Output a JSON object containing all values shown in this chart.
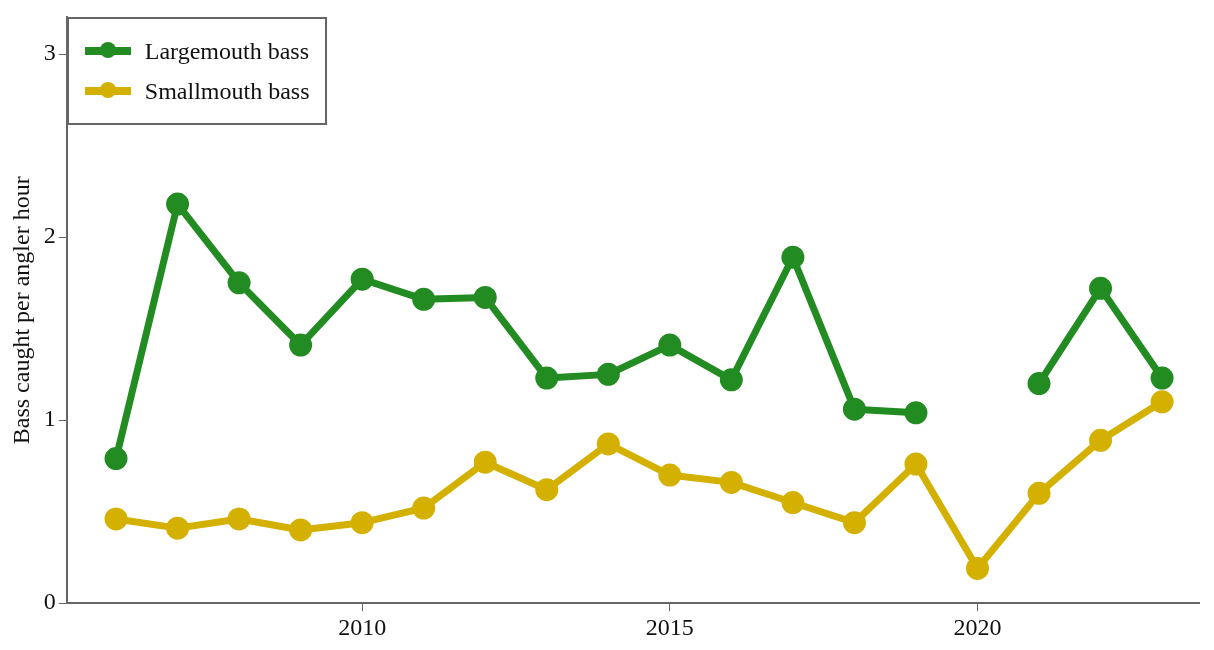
{
  "chart_data": {
    "type": "line",
    "ylabel": "Bass caught per angler hour",
    "x": [
      2006,
      2007,
      2008,
      2009,
      2010,
      2011,
      2012,
      2013,
      2014,
      2015,
      2016,
      2017,
      2018,
      2019,
      2020,
      2021,
      2022,
      2023
    ],
    "series": [
      {
        "name": "Largemouth bass",
        "color": "#228b22",
        "values": [
          0.79,
          2.18,
          1.75,
          1.41,
          1.77,
          1.66,
          1.67,
          1.23,
          1.25,
          1.41,
          1.22,
          1.89,
          1.06,
          1.04,
          null,
          1.2,
          1.72,
          1.23
        ]
      },
      {
        "name": "Smallmouth bass",
        "color": "#d4b000",
        "values": [
          0.46,
          0.41,
          0.46,
          0.4,
          0.44,
          0.52,
          0.77,
          0.62,
          0.87,
          0.7,
          0.66,
          0.55,
          0.44,
          0.76,
          0.19,
          0.6,
          0.89,
          1.1
        ]
      }
    ],
    "xlim": [
      2005.2,
      2023.6
    ],
    "xticks": [
      2010,
      2015,
      2020
    ],
    "ylim": [
      0,
      3.2
    ],
    "yticks": [
      0,
      1,
      2,
      3
    ],
    "grid": false,
    "legend": "top left",
    "marker": "circle",
    "line_style": "solid"
  }
}
